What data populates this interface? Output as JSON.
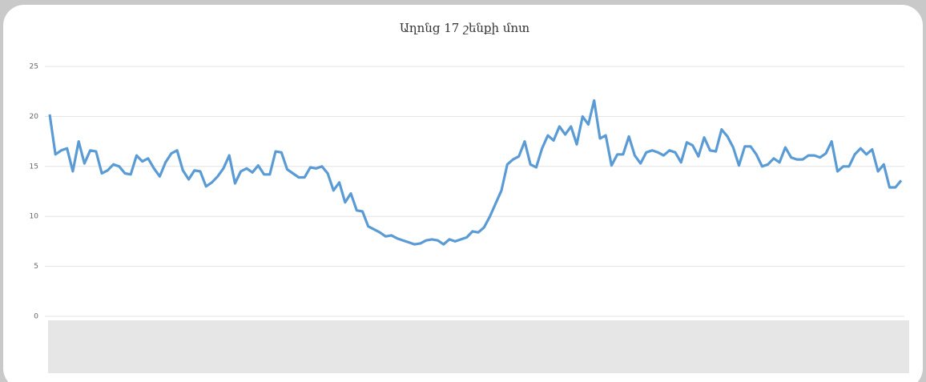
{
  "chart_data": {
    "type": "line",
    "title": "Աղոնց 17 շենքի մոտ",
    "categories": [
      null,
      null,
      null,
      null,
      null,
      null,
      null,
      null,
      null,
      null,
      null,
      null,
      null,
      null,
      null,
      null,
      null,
      null,
      null,
      null,
      null,
      null,
      null,
      null,
      null,
      null,
      null,
      null,
      null,
      null,
      null,
      null,
      null,
      null,
      null,
      null,
      null,
      null,
      null,
      null,
      null,
      null,
      null,
      null,
      null,
      null,
      null,
      null,
      null,
      null,
      null,
      null,
      null,
      null,
      null,
      null,
      null,
      null,
      null,
      null,
      null,
      null,
      null,
      null,
      null,
      null,
      null,
      null,
      null,
      null,
      null,
      null,
      null,
      null,
      null,
      null,
      null,
      null,
      null,
      null,
      null,
      null,
      null,
      null,
      null,
      null,
      null,
      null,
      null,
      null,
      null,
      null,
      null,
      null,
      null,
      null,
      null,
      null,
      null,
      null,
      null,
      null,
      null,
      null,
      null,
      null,
      null,
      null,
      null,
      null,
      null,
      null,
      null,
      null,
      null,
      null,
      null,
      null,
      null,
      null,
      null,
      null,
      null,
      null,
      null,
      null,
      null,
      null,
      null,
      null,
      null,
      null,
      null,
      null,
      null,
      null,
      null,
      null,
      null,
      null,
      null,
      null,
      null,
      null,
      null,
      null,
      null,
      null
    ],
    "series": [
      {
        "name": null,
        "color": "#5b9bd5",
        "values": [
          20.2,
          16.2,
          16.6,
          16.8,
          14.5,
          17.5,
          15.3,
          16.6,
          16.5,
          14.3,
          14.6,
          15.2,
          15.0,
          14.3,
          14.2,
          16.1,
          15.5,
          15.8,
          14.8,
          14.0,
          15.4,
          16.3,
          16.6,
          14.6,
          13.7,
          14.6,
          14.5,
          13.0,
          13.4,
          14.0,
          14.8,
          16.1,
          13.3,
          14.5,
          14.8,
          14.4,
          15.1,
          14.2,
          14.2,
          16.5,
          16.4,
          14.7,
          14.3,
          13.9,
          13.9,
          14.9,
          14.8,
          15.0,
          14.3,
          12.6,
          13.4,
          11.4,
          12.3,
          10.6,
          10.5,
          9.0,
          8.7,
          8.4,
          8.0,
          8.1,
          7.8,
          7.6,
          7.4,
          7.2,
          7.3,
          7.6,
          7.7,
          7.6,
          7.2,
          7.7,
          7.5,
          7.7,
          7.9,
          8.5,
          8.4,
          8.9,
          10.0,
          11.3,
          12.6,
          15.2,
          15.7,
          16.0,
          17.5,
          15.2,
          14.9,
          16.8,
          18.1,
          17.6,
          19.0,
          18.2,
          19.0,
          17.2,
          20.0,
          19.2,
          21.6,
          17.8,
          18.1,
          15.1,
          16.2,
          16.2,
          18.0,
          16.1,
          15.3,
          16.4,
          16.6,
          16.4,
          16.1,
          16.6,
          16.4,
          15.4,
          17.4,
          17.1,
          16.0,
          17.9,
          16.6,
          16.5,
          18.7,
          18.0,
          16.9,
          15.1,
          17.0,
          17.0,
          16.2,
          15.0,
          15.2,
          15.8,
          15.4,
          16.9,
          15.9,
          15.7,
          15.7,
          16.1,
          16.1,
          15.9,
          16.3,
          17.5,
          14.5,
          15.0,
          15.0,
          16.2,
          16.8,
          16.2,
          16.7,
          14.5,
          15.2,
          12.9,
          12.9,
          13.6
        ]
      }
    ],
    "ylim": [
      0,
      25
    ],
    "yticks": [
      0,
      5,
      10,
      15,
      20,
      25
    ],
    "grid": true
  }
}
